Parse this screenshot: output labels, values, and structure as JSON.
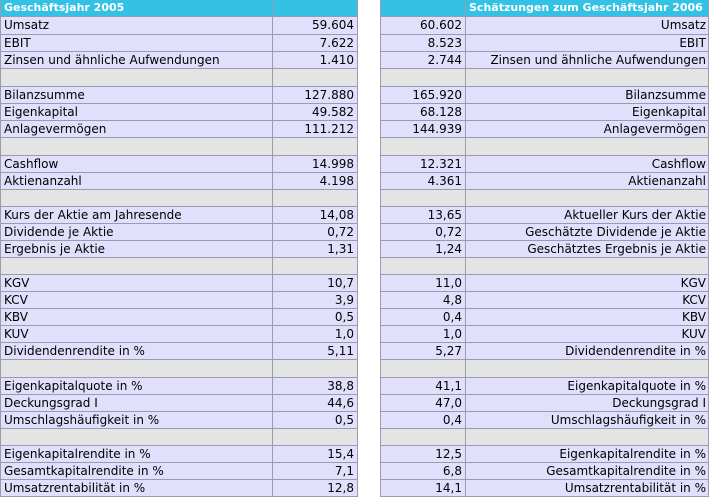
{
  "headers": {
    "left_title": "Geschäftsjahr 2005",
    "right_title": "Schätzungen zum Geschäftsjahr 2006"
  },
  "rows": [
    {
      "type": "data",
      "label_left": "Umsatz",
      "value_2005": "59.604",
      "value_2006": "60.602",
      "label_right": "Umsatz"
    },
    {
      "type": "data",
      "label_left": "EBIT",
      "value_2005": "7.622",
      "value_2006": "8.523",
      "label_right": "EBIT"
    },
    {
      "type": "data",
      "label_left": "Zinsen und ähnliche Aufwendungen",
      "value_2005": "1.410",
      "value_2006": "2.744",
      "label_right": "Zinsen und ähnliche Aufwendungen"
    },
    {
      "type": "spacer"
    },
    {
      "type": "data",
      "label_left": "Bilanzsumme",
      "value_2005": "127.880",
      "value_2006": "165.920",
      "label_right": "Bilanzsumme"
    },
    {
      "type": "data",
      "label_left": "Eigenkapital",
      "value_2005": "49.582",
      "value_2006": "68.128",
      "label_right": "Eigenkapital"
    },
    {
      "type": "data",
      "label_left": "Anlagevermögen",
      "value_2005": "111.212",
      "value_2006": "144.939",
      "label_right": "Anlagevermögen"
    },
    {
      "type": "spacer"
    },
    {
      "type": "data",
      "label_left": "Cashflow",
      "value_2005": "14.998",
      "value_2006": "12.321",
      "label_right": "Cashflow"
    },
    {
      "type": "data",
      "label_left": "Aktienanzahl",
      "value_2005": "4.198",
      "value_2006": "4.361",
      "label_right": "Aktienanzahl"
    },
    {
      "type": "spacer"
    },
    {
      "type": "data",
      "label_left": "Kurs der Aktie am Jahresende",
      "value_2005": "14,08",
      "value_2006": "13,65",
      "label_right": "Aktueller Kurs der Aktie"
    },
    {
      "type": "data",
      "label_left": "Dividende je Aktie",
      "value_2005": "0,72",
      "value_2006": "0,72",
      "label_right": "Geschätzte Dividende je Aktie"
    },
    {
      "type": "data",
      "label_left": "Ergebnis je Aktie",
      "value_2005": "1,31",
      "value_2006": "1,24",
      "label_right": "Geschätztes Ergebnis je Aktie"
    },
    {
      "type": "spacer"
    },
    {
      "type": "data",
      "label_left": "KGV",
      "value_2005": "10,7",
      "value_2006": "11,0",
      "label_right": "KGV"
    },
    {
      "type": "data",
      "label_left": "KCV",
      "value_2005": "3,9",
      "value_2006": "4,8",
      "label_right": "KCV"
    },
    {
      "type": "data",
      "label_left": "KBV",
      "value_2005": "0,5",
      "value_2006": "0,4",
      "label_right": "KBV"
    },
    {
      "type": "data",
      "label_left": "KUV",
      "value_2005": "1,0",
      "value_2006": "1,0",
      "label_right": "KUV"
    },
    {
      "type": "data",
      "label_left": "Dividendenrendite in %",
      "value_2005": "5,11",
      "value_2006": "5,27",
      "label_right": "Dividendenrendite in %"
    },
    {
      "type": "spacer"
    },
    {
      "type": "data",
      "label_left": "Eigenkapitalquote in %",
      "value_2005": "38,8",
      "value_2006": "41,1",
      "label_right": "Eigenkapitalquote in %"
    },
    {
      "type": "data",
      "label_left": "Deckungsgrad I",
      "value_2005": "44,6",
      "value_2006": "47,0",
      "label_right": "Deckungsgrad I"
    },
    {
      "type": "data",
      "label_left": "Umschlagshäufigkeit in %",
      "value_2005": "0,5",
      "value_2006": "0,4",
      "label_right": "Umschlagshäufigkeit in %"
    },
    {
      "type": "spacer"
    },
    {
      "type": "data",
      "label_left": "Eigenkapitalrendite in %",
      "value_2005": "15,4",
      "value_2006": "12,5",
      "label_right": "Eigenkapitalrendite in %"
    },
    {
      "type": "data",
      "label_left": "Gesamtkapitalrendite in %",
      "value_2005": "7,1",
      "value_2006": "6,8",
      "label_right": "Gesamtkapitalrendite in %"
    },
    {
      "type": "data",
      "label_left": "Umsatzrentabilität in %",
      "value_2005": "12,8",
      "value_2006": "14,1",
      "label_right": "Umsatzrentabilität in %"
    }
  ]
}
